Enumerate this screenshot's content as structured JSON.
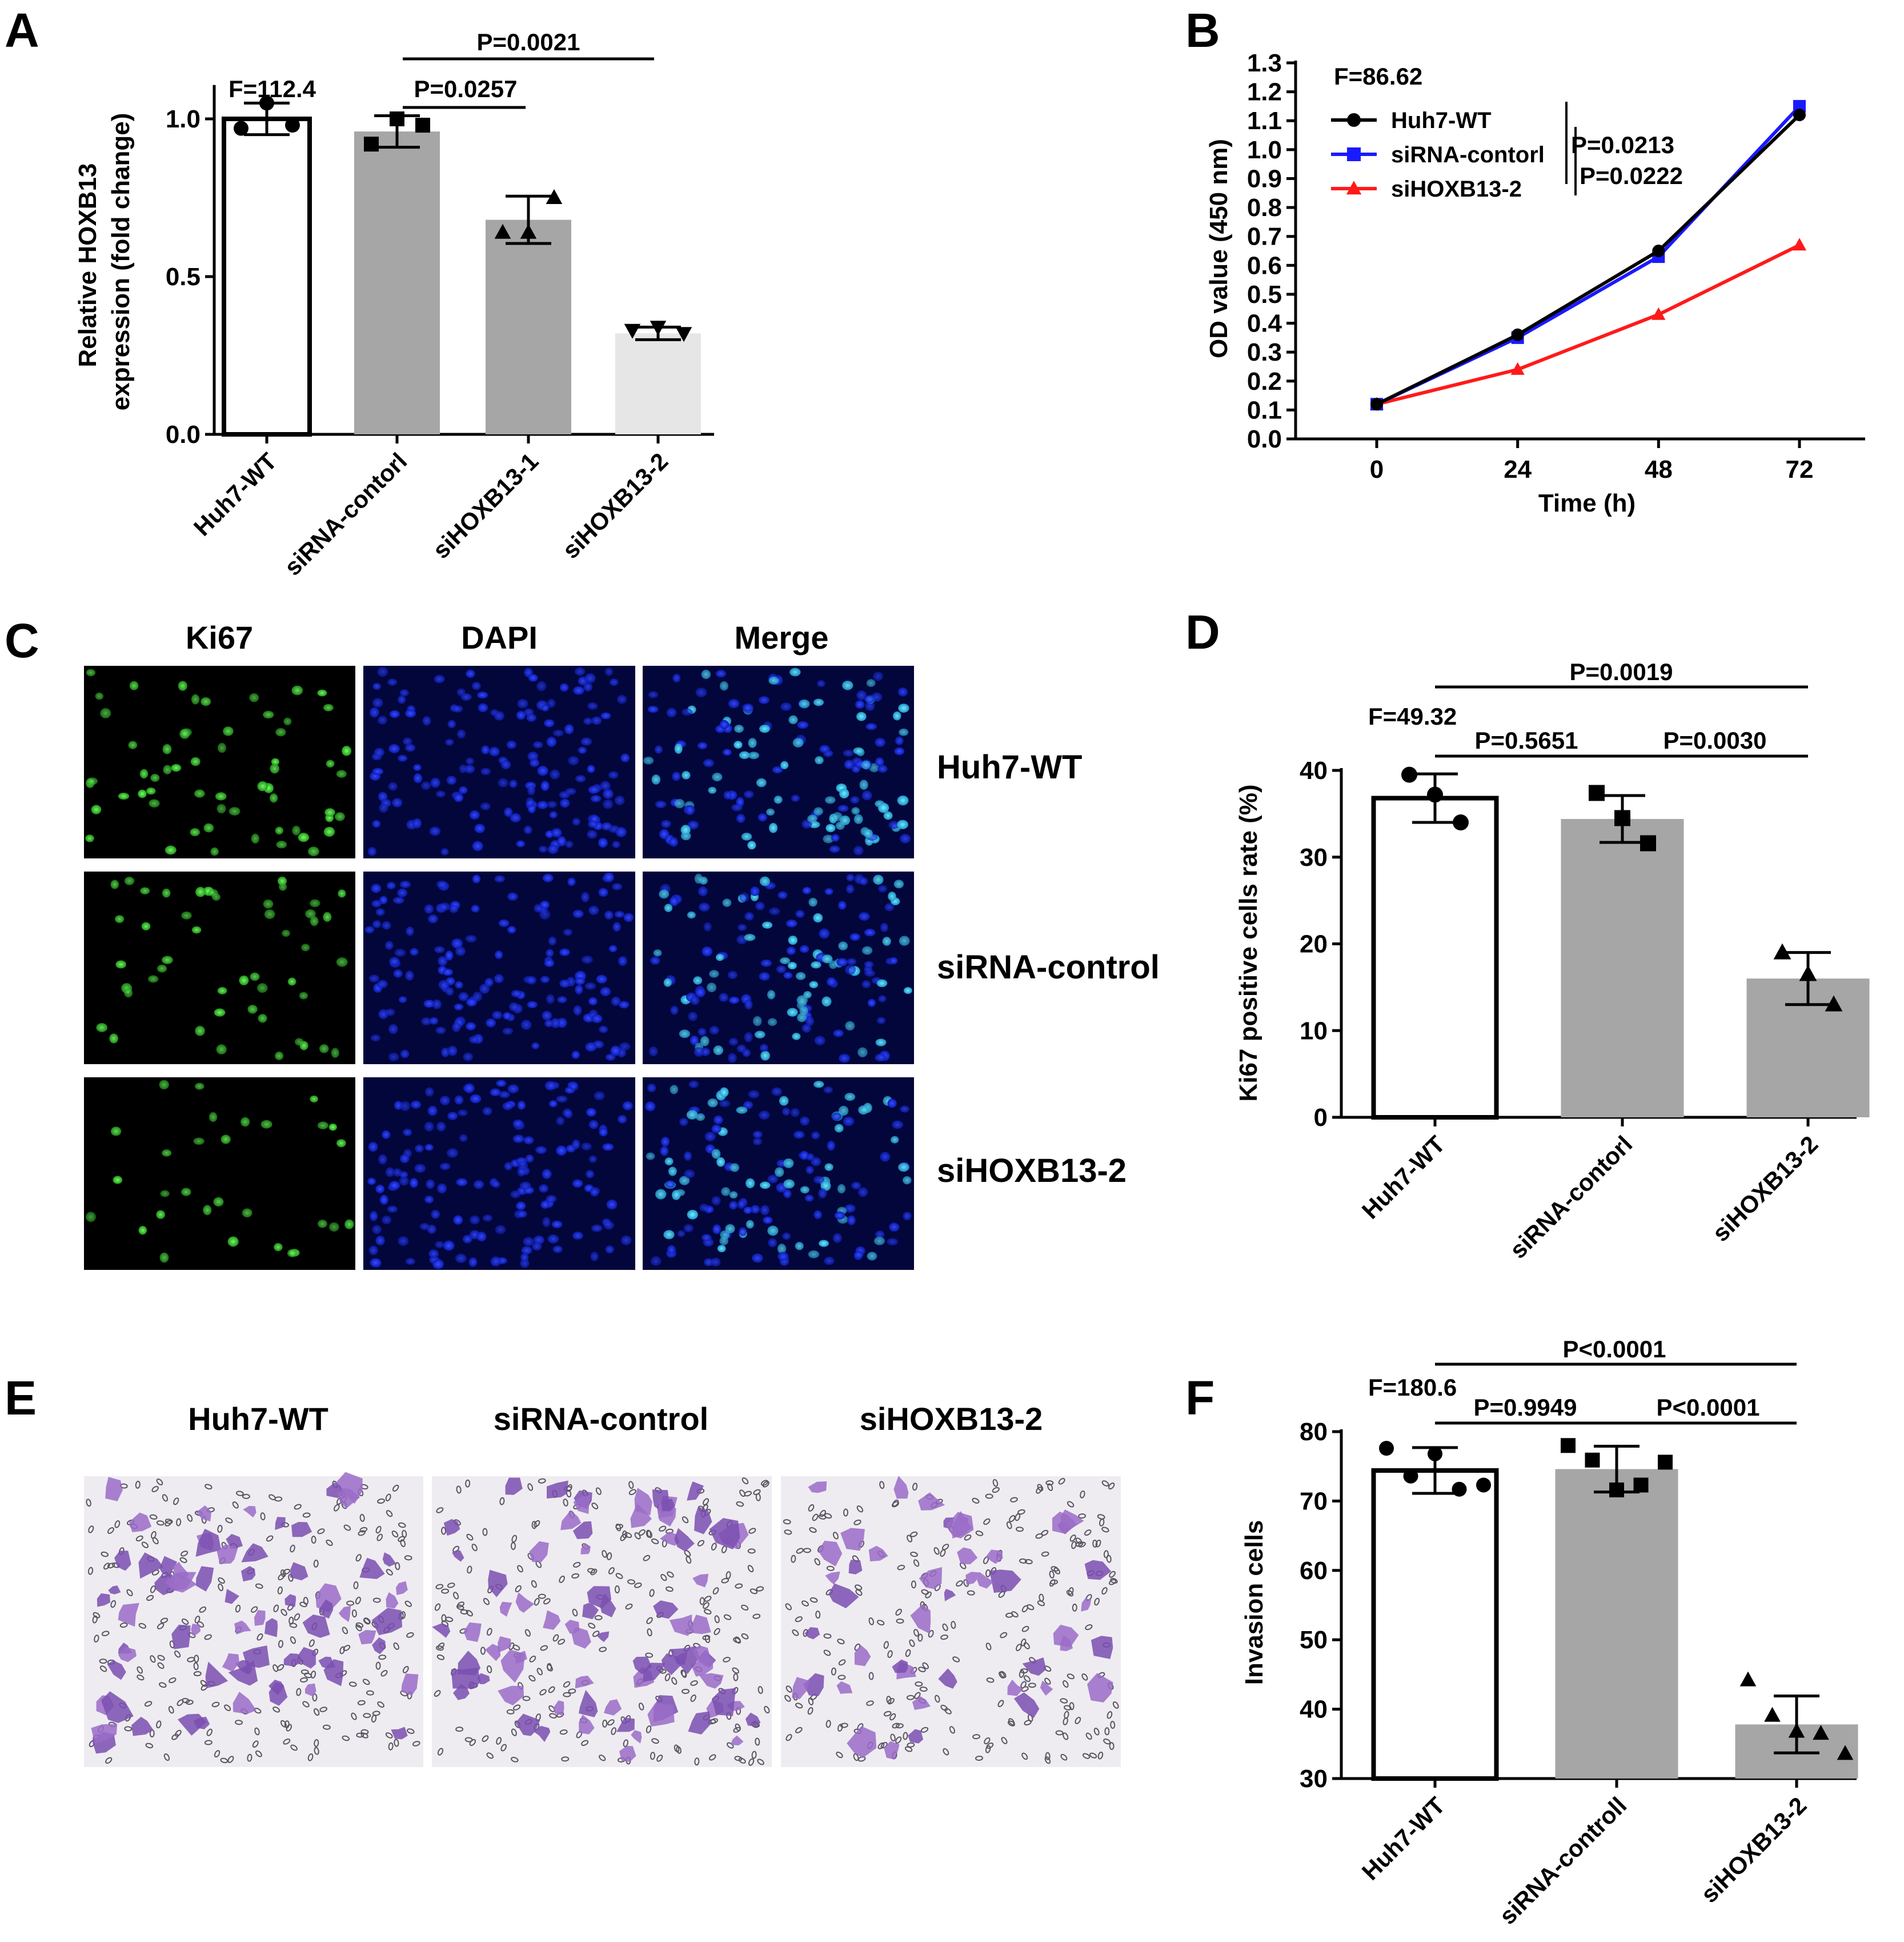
{
  "panels": {
    "A": "A",
    "B": "B",
    "C": "C",
    "D": "D",
    "E": "E",
    "F": "F"
  },
  "chart_data": [
    {
      "panel": "A",
      "type": "bar",
      "categories": [
        "Huh7-WT",
        "siRNA-contorl",
        "siHOXB13-1",
        "siHOXB13-2"
      ],
      "values": [
        1.0,
        0.96,
        0.68,
        0.32
      ],
      "sd": [
        0.05,
        0.05,
        0.075,
        0.02
      ],
      "points": [
        [
          0.97,
          1.05,
          0.98
        ],
        [
          0.92,
          1.0,
          0.98
        ],
        [
          0.64,
          0.64,
          0.75
        ],
        [
          0.33,
          0.34,
          0.32
        ]
      ],
      "bar_colors": [
        "#ffffff",
        "#a6a6a6",
        "#a6a6a6",
        "#e6e6e6"
      ],
      "markers": [
        "circle",
        "square",
        "triangle",
        "triangle-down"
      ],
      "ylabel": "Relative HOXB13 expression (fold change)",
      "ylim": [
        0,
        1.1
      ],
      "yticks": [
        "0.0",
        "0.5",
        "1.0"
      ],
      "annotations": {
        "f": "F=112.4",
        "p1": "P=0.0257",
        "p2": "P=0.0021"
      }
    },
    {
      "panel": "B",
      "type": "line",
      "x": [
        0,
        24,
        48,
        72
      ],
      "series": [
        {
          "name": "Huh7-WT",
          "color": "#000000",
          "marker": "circle",
          "values": [
            0.12,
            0.36,
            0.65,
            1.12
          ]
        },
        {
          "name": "siRNA-contorl",
          "color": "#1a1aff",
          "marker": "square",
          "values": [
            0.12,
            0.35,
            0.63,
            1.15
          ]
        },
        {
          "name": "siHOXB13-2",
          "color": "#ff1a1a",
          "marker": "triangle",
          "values": [
            0.12,
            0.24,
            0.43,
            0.67
          ]
        }
      ],
      "xlabel": "Time (h)",
      "ylabel": "OD value (450 nm)",
      "ylim": [
        0,
        1.3
      ],
      "xticks": [
        "0",
        "24",
        "48",
        "72"
      ],
      "annotations": {
        "f": "F=86.62",
        "p1": "P=0.0213",
        "p2": "P=0.0222"
      }
    },
    {
      "panel": "D",
      "type": "bar",
      "categories": [
        "Huh7-WT",
        "siRNA-contorl",
        "siHOXB13-2"
      ],
      "values": [
        36.8,
        34.4,
        16.0
      ],
      "sd": [
        2.8,
        2.7,
        3.0
      ],
      "points": [
        [
          39.5,
          37.2,
          34.0
        ],
        [
          37.4,
          34.5,
          31.6
        ],
        [
          19.0,
          16.5,
          13.0
        ]
      ],
      "bar_colors": [
        "#ffffff",
        "#a6a6a6",
        "#a6a6a6"
      ],
      "markers": [
        "circle",
        "square",
        "triangle"
      ],
      "ylabel": "Ki67 positive cells rate (%)",
      "ylim": [
        0,
        40
      ],
      "yticks": [
        "0",
        "10",
        "20",
        "30",
        "40"
      ],
      "annotations": {
        "f": "F=49.32",
        "p1": "P=0.5651",
        "p2": "P=0.0030",
        "p3": "P=0.0019"
      }
    },
    {
      "panel": "F",
      "type": "bar",
      "categories": [
        "Huh7-WT",
        "siRNA-controll",
        "siHOXB13-2"
      ],
      "values": [
        74.4,
        74.6,
        37.8
      ],
      "sd": [
        3.3,
        3.3,
        4.1
      ],
      "points": [
        [
          77.6,
          73.6,
          76.8,
          71.7,
          72.3
        ],
        [
          78.0,
          75.9,
          71.6,
          72.3,
          75.6
        ],
        [
          44.2,
          39.1,
          36.8,
          36.5,
          33.6
        ]
      ],
      "bar_colors": [
        "#ffffff",
        "#a6a6a6",
        "#a6a6a6"
      ],
      "markers": [
        "circle",
        "square",
        "triangle"
      ],
      "ylabel": "Invasion cells",
      "ylim": [
        30,
        80
      ],
      "yticks": [
        "30",
        "40",
        "50",
        "60",
        "70",
        "80"
      ],
      "annotations": {
        "f": "F=180.6",
        "p1": "P=0.9949",
        "p2": "P<0.0001",
        "p3": "P<0.0001"
      }
    }
  ],
  "panelC": {
    "columns": [
      "Ki67",
      "DAPI",
      "Merge"
    ],
    "rows": [
      "Huh7-WT",
      "siRNA-control",
      "siHOXB13-2"
    ]
  },
  "panelE": {
    "columns": [
      "Huh7-WT",
      "siRNA-control",
      "siHOXB13-2"
    ]
  }
}
